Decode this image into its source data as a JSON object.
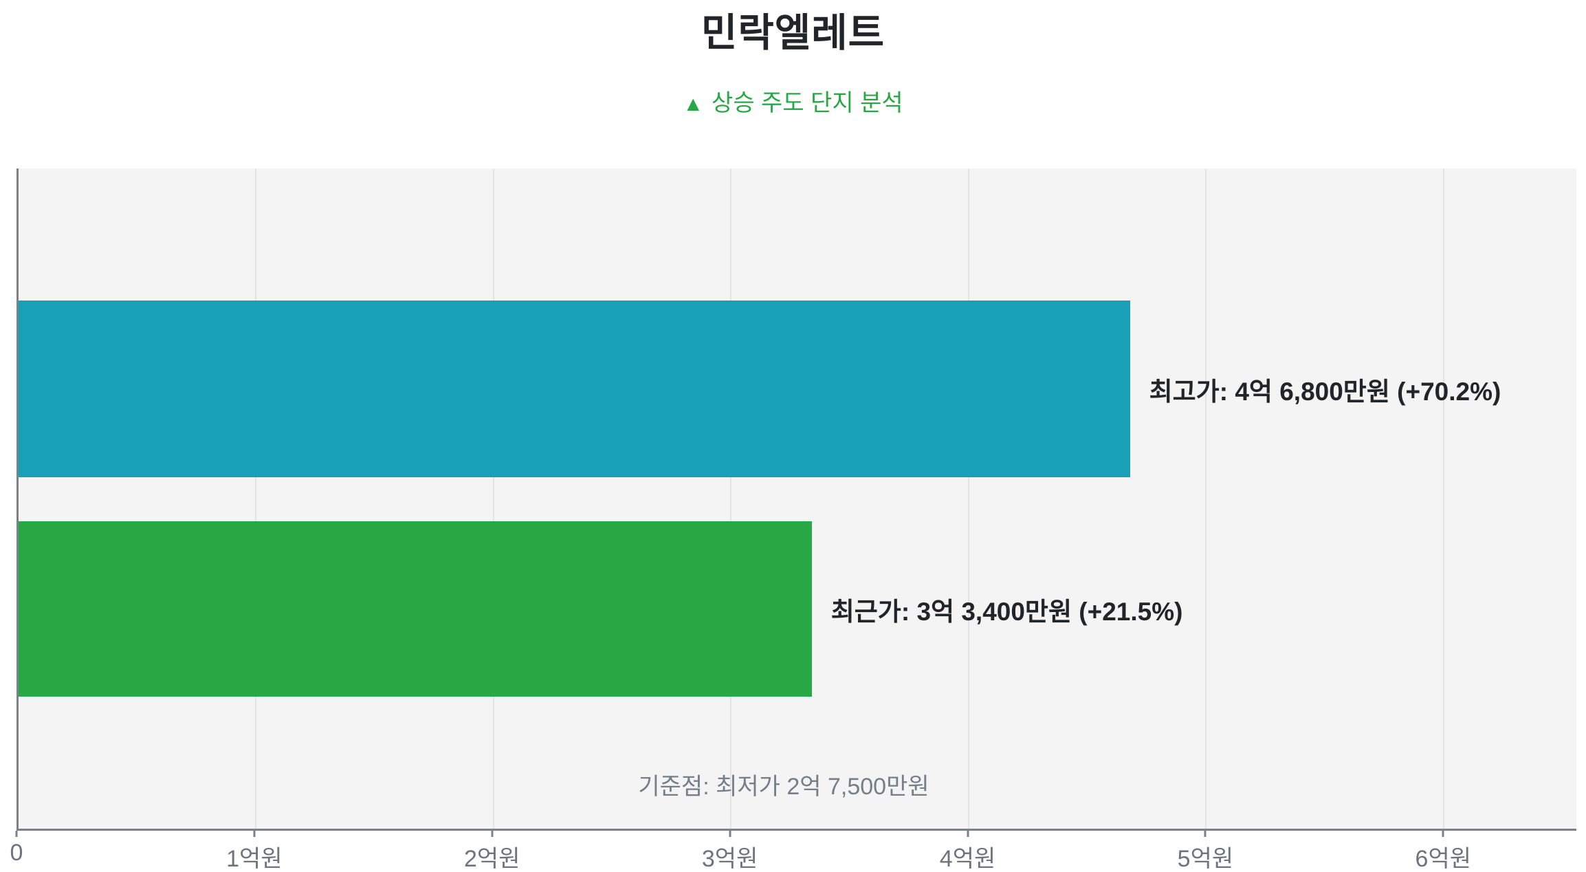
{
  "header": {
    "title": "민락엘레트",
    "subtitle_icon": "▲",
    "subtitle": "상승 주도 단지 분석"
  },
  "chart_data": {
    "type": "bar",
    "orientation": "horizontal",
    "title": "민락엘레트",
    "subtitle": "▲ 상승 주도 단지 분석",
    "categories": [
      "최고가",
      "최근가"
    ],
    "series": [
      {
        "name": "최고가",
        "value_eok": 4.68,
        "value_label": "최고가: 4억 6,800만원 (+70.2%)",
        "change_pct": "+70.2%",
        "color": "#18a1b6"
      },
      {
        "name": "최근가",
        "value_eok": 3.34,
        "value_label": "최근가: 3억 3,400만원 (+21.5%)",
        "change_pct": "+21.5%",
        "color": "#28a745"
      }
    ],
    "baseline": {
      "label": "기준점: 최저가 2억 7,500만원",
      "value_eok": 2.75
    },
    "x_ticks": [
      "0",
      "1억원",
      "2억원",
      "3억원",
      "4억원",
      "5억원",
      "6억원"
    ],
    "xlabel": "",
    "ylabel": "",
    "xlim_eok": [
      0,
      6.56
    ],
    "grid": true,
    "legend_position": "none",
    "plot_bg": "#f4f4f5"
  },
  "colors": {
    "bar_high": "#18a1b6",
    "bar_recent": "#28a745",
    "accent_green": "#28a745",
    "plot_bg": "#f4f4f5",
    "axis_line": "#79828b",
    "grid_line": "#e4e4e6",
    "tick_label": "#6c757d",
    "annotation_text": "#747f8a",
    "title_text": "#212529"
  }
}
